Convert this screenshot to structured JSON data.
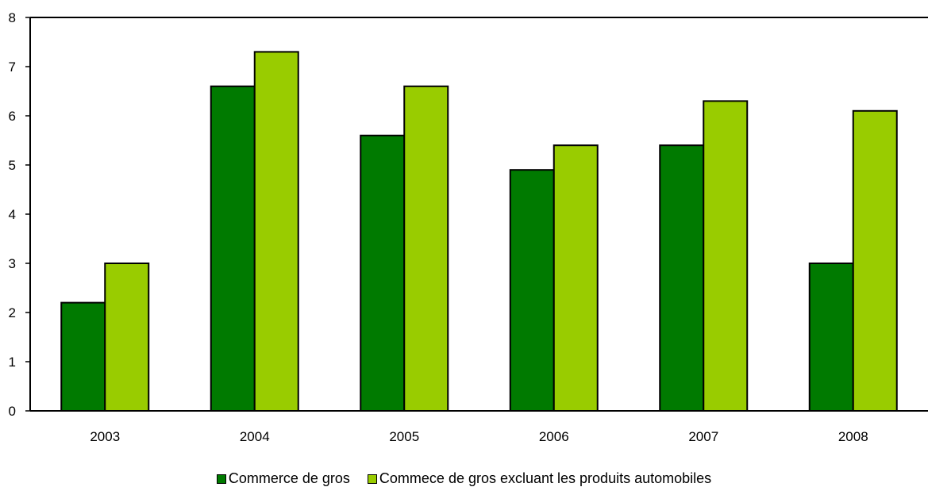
{
  "chart_data": {
    "type": "bar",
    "title": "",
    "xlabel": "",
    "ylabel": "",
    "categories": [
      "2003",
      "2004",
      "2005",
      "2006",
      "2007",
      "2008"
    ],
    "series": [
      {
        "name": "Commerce de gros",
        "color": "#007a00",
        "values": [
          2.2,
          6.6,
          5.6,
          4.9,
          5.4,
          3.0
        ]
      },
      {
        "name": "Commece de gros excluant les produits automobiles",
        "color": "#99cc00",
        "values": [
          3.0,
          7.3,
          6.6,
          5.4,
          6.3,
          6.1
        ]
      }
    ],
    "ylim": [
      0,
      8
    ],
    "yticks": [
      "0",
      "1",
      "2",
      "3",
      "4",
      "5",
      "6",
      "7",
      "8"
    ],
    "grid": false,
    "legend_position": "bottom-center"
  }
}
